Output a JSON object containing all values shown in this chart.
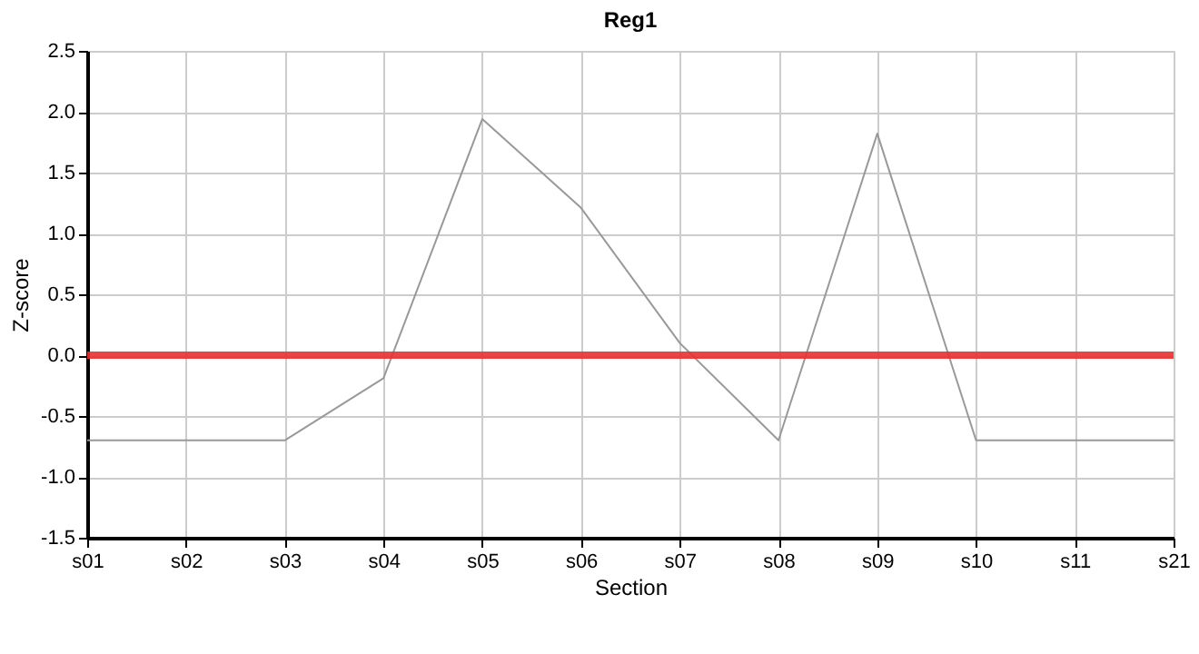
{
  "chart_data": {
    "type": "line",
    "title": "Reg1",
    "xlabel": "Section",
    "ylabel": "Z-score",
    "categories": [
      "s01",
      "s02",
      "s03",
      "s04",
      "s05",
      "s06",
      "s07",
      "s08",
      "s09",
      "s10",
      "s11",
      "s21"
    ],
    "series": [
      {
        "color": "#999999",
        "values": [
          -0.7,
          -0.7,
          -0.7,
          -0.19,
          1.94,
          1.21,
          0.1,
          -0.7,
          1.82,
          -0.7,
          -0.7,
          -0.7
        ]
      }
    ],
    "ylim": [
      -1.5,
      2.5
    ],
    "yticks": [
      -1.5,
      {
        "value": -1,
        "label": "-1.0"
      },
      -0.5,
      {
        "value": 0,
        "label": "0.0"
      },
      0.5,
      {
        "value": 1,
        "label": "1.0"
      },
      1.5,
      {
        "value": 2,
        "label": "2.0"
      },
      2.5
    ],
    "ref_lines": [
      {
        "axis": "y",
        "value": 0,
        "color": "#e83030"
      }
    ],
    "grid": true,
    "marker": "none",
    "line_style": "solid"
  }
}
